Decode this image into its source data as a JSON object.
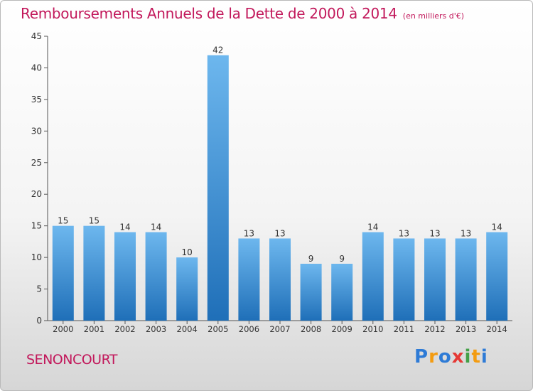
{
  "chart_data": {
    "type": "bar",
    "title": "Remboursements Annuels de la Dette de 2000 à 2014",
    "subtitle": "(en milliers d'€)",
    "categories": [
      "2000",
      "2001",
      "2002",
      "2003",
      "2004",
      "2005",
      "2006",
      "2007",
      "2008",
      "2009",
      "2010",
      "2011",
      "2012",
      "2013",
      "2014"
    ],
    "values": [
      15,
      15,
      14,
      14,
      10,
      42,
      13,
      13,
      9,
      9,
      14,
      13,
      13,
      13,
      14
    ],
    "ylim": [
      0,
      45
    ],
    "yticks": [
      0,
      5,
      10,
      15,
      20,
      25,
      30,
      35,
      40,
      45
    ],
    "grid": false,
    "bar_color": "#3a8fd8"
  },
  "footer": {
    "location": "SENONCOURT",
    "brand": "Proxiti",
    "brand_letters": [
      {
        "ch": "P",
        "color": "#2e7bd6"
      },
      {
        "ch": "r",
        "color": "#f39c12"
      },
      {
        "ch": "o",
        "color": "#2e7bd6"
      },
      {
        "ch": "x",
        "color": "#e53935"
      },
      {
        "ch": "i",
        "color": "#43a047"
      },
      {
        "ch": "t",
        "color": "#f39c12"
      },
      {
        "ch": "i",
        "color": "#2e7bd6"
      }
    ]
  }
}
